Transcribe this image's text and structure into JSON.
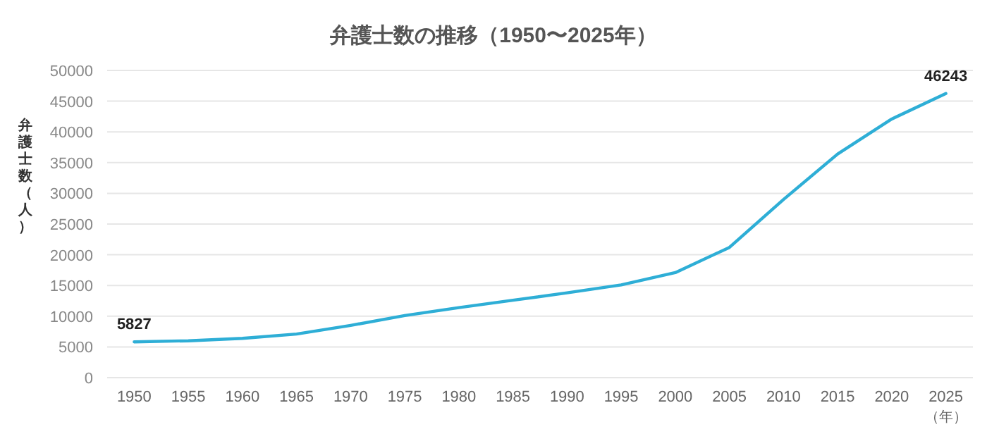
{
  "chart_data": {
    "type": "line",
    "title": "弁護士数の推移（1950〜2025年）",
    "ylabel": "弁護士数（人）",
    "xlabel": "（年）",
    "categories": [
      "1950",
      "1955",
      "1960",
      "1965",
      "1970",
      "1975",
      "1980",
      "1985",
      "1990",
      "1995",
      "2000",
      "2005",
      "2010",
      "2015",
      "2020",
      "2025"
    ],
    "series": [
      {
        "color": "#2eaed6",
        "values": [
          5827,
          6000,
          6400,
          7100,
          8500,
          10100,
          11400,
          12600,
          13800,
          15100,
          17100,
          21200,
          29000,
          36400,
          42100,
          46243
        ],
        "value_labels": [
          "5827",
          null,
          null,
          null,
          null,
          null,
          null,
          null,
          null,
          null,
          null,
          null,
          null,
          null,
          null,
          "46243"
        ]
      }
    ],
    "ylim": [
      0,
      50000
    ],
    "yticks": [
      0,
      5000,
      10000,
      15000,
      20000,
      25000,
      30000,
      35000,
      40000,
      45000,
      50000
    ],
    "grid": "y",
    "marker": "none",
    "line_style": "solid"
  }
}
